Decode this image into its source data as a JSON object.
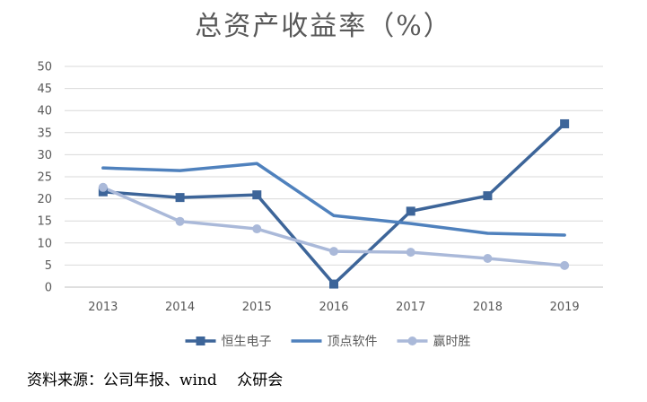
{
  "colors": {
    "series1": "#3d6599",
    "series2": "#4f81bd",
    "series3": "#aab9d9",
    "grid": "#d9d9d9",
    "axis": "#bfbfbf"
  },
  "chart_data": {
    "type": "line",
    "title": "总资产收益率（%）",
    "x": [
      "2013",
      "2014",
      "2015",
      "2016",
      "2017",
      "2018",
      "2019"
    ],
    "ylim": [
      0,
      50
    ],
    "yticks": [
      0,
      5,
      10,
      15,
      20,
      25,
      30,
      35,
      40,
      45,
      50
    ],
    "grid": true,
    "legend_position": "bottom",
    "series": [
      {
        "name": "恒生电子",
        "marker": "square",
        "values": [
          21.6,
          20.3,
          20.9,
          0.7,
          17.2,
          20.7,
          37.0
        ]
      },
      {
        "name": "顶点软件",
        "marker": "none",
        "values": [
          27.0,
          26.4,
          28.0,
          16.2,
          14.4,
          12.2,
          11.8
        ]
      },
      {
        "name": "赢时胜",
        "marker": "circle",
        "values": [
          22.6,
          14.9,
          13.2,
          8.1,
          7.9,
          6.5,
          4.9
        ]
      }
    ]
  },
  "source_note": "资料来源：公司年报、wind　 众研会"
}
